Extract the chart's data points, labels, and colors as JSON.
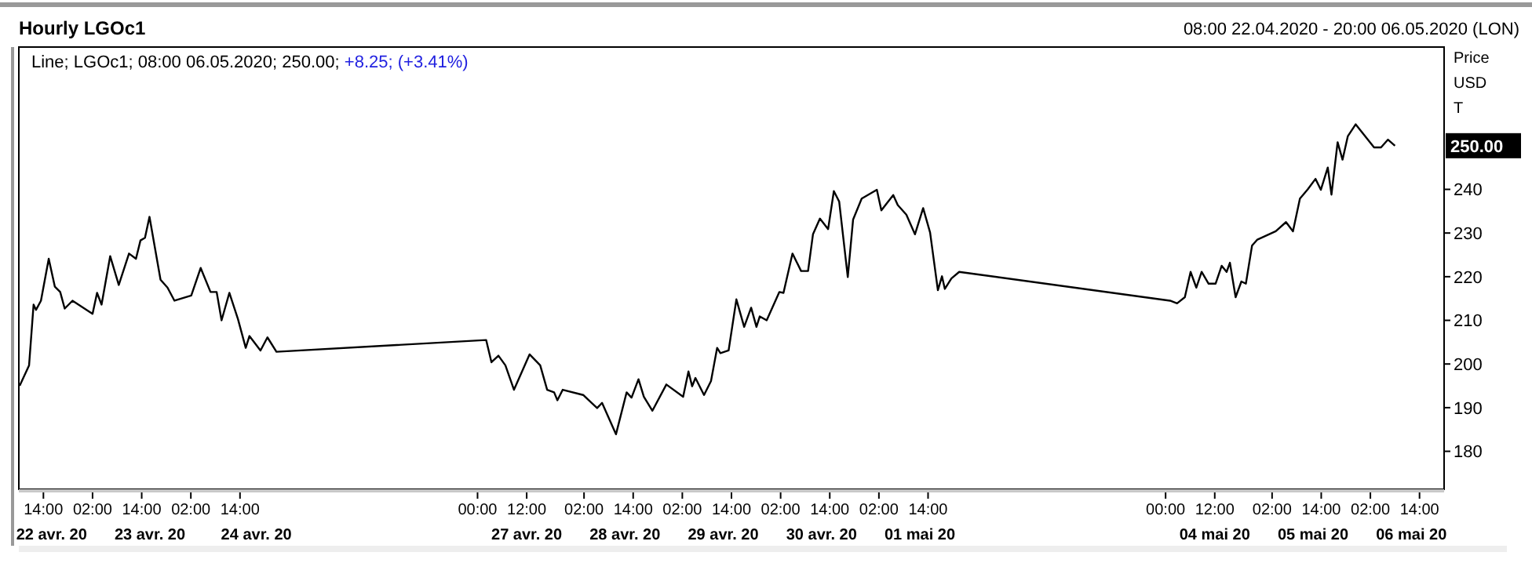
{
  "chart_data": {
    "type": "line",
    "title": "Hourly LGOc1",
    "subtitle": "08:00 22.04.2020 - 20:00 06.05.2020 (LON)",
    "ylabel": "Price USD T",
    "annotations": [
      "Line; LGOc1; 08:00 06.05.2020; 250.00; +8.25; (+3.41%)",
      "250.00"
    ],
    "series": [
      {
        "color": "#000000",
        "x": [
          "2020-04-22T08:12",
          "2020-04-22T10:30",
          "2020-04-22T11:36",
          "2020-04-22T12:12",
          "2020-04-22T13:24",
          "2020-04-22T15:18",
          "2020-04-22T16:48",
          "2020-04-22T18:06",
          "2020-04-22T19:12",
          "2020-04-22T21:06",
          "2020-04-23T02:00",
          "2020-04-23T03:06",
          "2020-04-23T04:12",
          "2020-04-23T06:18",
          "2020-04-23T08:24",
          "2020-04-23T10:54",
          "2020-04-23T12:36",
          "2020-04-23T13:42",
          "2020-04-23T14:48",
          "2020-04-23T15:54",
          "2020-04-23T18:36",
          "2020-04-23T20:18",
          "2020-04-23T22:00",
          "2020-04-24T02:06",
          "2020-04-24T04:24",
          "2020-04-24T06:48",
          "2020-04-24T08:18",
          "2020-04-24T09:30",
          "2020-04-24T11:24",
          "2020-04-24T13:30",
          "2020-04-24T15:24",
          "2020-04-24T16:18",
          "2020-04-24T19:00",
          "2020-04-24T20:42",
          "2020-04-24T22:54",
          "2020-04-27T02:06",
          "2020-04-27T03:24",
          "2020-04-27T05:06",
          "2020-04-27T06:48",
          "2020-04-27T08:54",
          "2020-04-27T12:42",
          "2020-04-27T15:18",
          "2020-04-27T17:00",
          "2020-04-27T18:42",
          "2020-04-27T19:30",
          "2020-04-27T20:48",
          "2020-04-28T01:48",
          "2020-04-28T05:12",
          "2020-04-28T06:24",
          "2020-04-28T09:48",
          "2020-04-28T12:24",
          "2020-04-28T13:36",
          "2020-04-28T15:18",
          "2020-04-28T16:36",
          "2020-04-28T18:42",
          "2020-04-28T22:06",
          "2020-04-29T02:12",
          "2020-04-29T03:30",
          "2020-04-29T04:24",
          "2020-04-29T05:12",
          "2020-04-29T07:18",
          "2020-04-29T09:00",
          "2020-04-29T10:30",
          "2020-04-29T11:18",
          "2020-04-29T13:18",
          "2020-04-29T15:12",
          "2020-04-29T17:06",
          "2020-04-29T18:48",
          "2020-04-29T20:06",
          "2020-04-29T20:54",
          "2020-04-29T22:36",
          "2020-04-30T01:42",
          "2020-04-30T02:42",
          "2020-04-30T04:54",
          "2020-04-30T07:00",
          "2020-04-30T08:42",
          "2020-04-30T09:54",
          "2020-04-30T11:36",
          "2020-04-30T13:36",
          "2020-04-30T15:00",
          "2020-04-30T16:18",
          "2020-04-30T18:24",
          "2020-04-30T19:42",
          "2020-04-30T21:48",
          "2020-05-01T01:30",
          "2020-05-01T02:36",
          "2020-05-01T03:36",
          "2020-05-01T05:30",
          "2020-05-01T06:36",
          "2020-05-01T08:42",
          "2020-05-01T10:48",
          "2020-05-01T12:48",
          "2020-05-01T14:30",
          "2020-05-01T16:24",
          "2020-05-01T17:24",
          "2020-05-01T18:06",
          "2020-05-01T19:42",
          "2020-05-01T21:36",
          "2020-05-04T01:06",
          "2020-05-04T02:48",
          "2020-05-04T04:42",
          "2020-05-04T06:06",
          "2020-05-04T07:30",
          "2020-05-04T08:48",
          "2020-05-04T10:30",
          "2020-05-04T12:12",
          "2020-05-04T13:42",
          "2020-05-04T14:54",
          "2020-05-04T15:42",
          "2020-05-04T17:06",
          "2020-05-04T18:30",
          "2020-05-04T19:36",
          "2020-05-04T21:06",
          "2020-05-04T22:24",
          "2020-05-05T02:54",
          "2020-05-05T05:24",
          "2020-05-05T07:06",
          "2020-05-05T08:48",
          "2020-05-05T10:42",
          "2020-05-05T12:36",
          "2020-05-05T13:54",
          "2020-05-05T15:36",
          "2020-05-05T16:30",
          "2020-05-05T18:00",
          "2020-05-05T19:12",
          "2020-05-05T20:30",
          "2020-05-05T22:24",
          "2020-05-06T02:54",
          "2020-05-06T04:36",
          "2020-05-06T06:18",
          "2020-05-06T08:00"
        ],
        "values": [
          195.0,
          199.7,
          213.6,
          212.4,
          214.5,
          224.1,
          217.7,
          216.5,
          212.7,
          214.5,
          211.5,
          216.3,
          213.6,
          224.7,
          218.1,
          225.3,
          224.1,
          228.3,
          228.9,
          233.7,
          219.3,
          217.5,
          214.5,
          215.7,
          222.0,
          216.5,
          216.5,
          210.0,
          216.3,
          210.3,
          203.7,
          206.4,
          203.1,
          206.1,
          202.8,
          205.5,
          200.4,
          201.9,
          199.7,
          194.1,
          202.2,
          199.7,
          194.1,
          193.5,
          191.7,
          194.1,
          192.9,
          189.9,
          191.1,
          183.9,
          193.5,
          192.3,
          196.5,
          192.5,
          189.3,
          195.3,
          192.5,
          198.3,
          194.9,
          196.8,
          192.9,
          196.1,
          203.7,
          202.5,
          203.1,
          214.8,
          208.5,
          212.9,
          208.5,
          210.9,
          210.0,
          216.5,
          216.3,
          225.3,
          221.3,
          221.3,
          229.7,
          233.3,
          230.9,
          239.6,
          237.2,
          219.9,
          233.1,
          237.9,
          239.9,
          235.2,
          236.4,
          238.7,
          236.4,
          234.2,
          229.7,
          235.7,
          230.1,
          216.9,
          220.1,
          217.2,
          219.6,
          221.1,
          214.5,
          213.9,
          215.3,
          221.1,
          217.5,
          221.1,
          218.4,
          218.4,
          222.5,
          221.1,
          223.2,
          215.3,
          218.9,
          218.4,
          227.1,
          228.5,
          230.4,
          232.5,
          230.4,
          237.9,
          240.0,
          242.4,
          239.9,
          245.0,
          238.8,
          250.8,
          246.8,
          252.2,
          254.9,
          249.6,
          249.6,
          251.4,
          250.0
        ]
      }
    ],
    "xlim": [
      "2020-04-22T08:00",
      "2020-05-06T20:00"
    ],
    "ylim": [
      171.3,
      272.6
    ],
    "xticks": [
      {
        "value": "2020-04-22T14:00",
        "label": "14:00"
      },
      {
        "value": "2020-04-23T02:00",
        "label": "02:00"
      },
      {
        "value": "2020-04-23T14:00",
        "label": "14:00"
      },
      {
        "value": "2020-04-24T02:00",
        "label": "02:00"
      },
      {
        "value": "2020-04-24T14:00",
        "label": "14:00"
      },
      {
        "value": "2020-04-27T00:00",
        "label": "00:00"
      },
      {
        "value": "2020-04-27T12:00",
        "label": "12:00"
      },
      {
        "value": "2020-04-28T02:00",
        "label": "02:00"
      },
      {
        "value": "2020-04-28T14:00",
        "label": "14:00"
      },
      {
        "value": "2020-04-29T02:00",
        "label": "02:00"
      },
      {
        "value": "2020-04-29T14:00",
        "label": "14:00"
      },
      {
        "value": "2020-04-30T02:00",
        "label": "02:00"
      },
      {
        "value": "2020-04-30T14:00",
        "label": "14:00"
      },
      {
        "value": "2020-05-01T02:00",
        "label": "02:00"
      },
      {
        "value": "2020-05-01T14:00",
        "label": "14:00"
      },
      {
        "value": "2020-05-04T00:00",
        "label": "00:00"
      },
      {
        "value": "2020-05-04T12:00",
        "label": "12:00"
      },
      {
        "value": "2020-05-05T02:00",
        "label": "02:00"
      },
      {
        "value": "2020-05-05T14:00",
        "label": "14:00"
      },
      {
        "value": "2020-05-06T02:00",
        "label": "02:00"
      },
      {
        "value": "2020-05-06T14:00",
        "label": "14:00"
      }
    ],
    "x2lim": [
      "2020-04-22T08:00",
      "2020-05-06T20:00"
    ],
    "x2ticks": [
      {
        "value": "2020-04-22T16:00",
        "label": "22 avr. 20"
      },
      {
        "value": "2020-04-23T16:00",
        "label": "23 avr. 20"
      },
      {
        "value": "2020-04-24T18:00",
        "label": "24 avr. 20"
      },
      {
        "value": "2020-04-27T12:00",
        "label": "27 avr. 20"
      },
      {
        "value": "2020-04-28T12:00",
        "label": "28 avr. 20"
      },
      {
        "value": "2020-04-29T12:00",
        "label": "29 avr. 20"
      },
      {
        "value": "2020-04-30T12:00",
        "label": "30 avr. 20"
      },
      {
        "value": "2020-05-01T12:00",
        "label": "01 mai 20"
      },
      {
        "value": "2020-05-04T12:00",
        "label": "04 mai 20"
      },
      {
        "value": "2020-05-05T12:00",
        "label": "05 mai 20"
      },
      {
        "value": "2020-05-06T12:00",
        "label": "06 mai 20"
      }
    ],
    "yticks": [
      180,
      190,
      200,
      210,
      220,
      230,
      240
    ],
    "grid": false,
    "marker": "none",
    "line_style": "solid"
  }
}
